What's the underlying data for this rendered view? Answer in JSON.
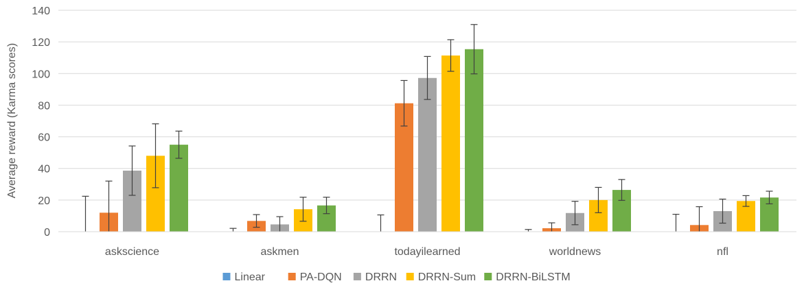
{
  "chart_data": {
    "type": "bar",
    "title": "",
    "xlabel": "",
    "ylabel": "Average reward (Karma scores)",
    "ylim": [
      0,
      140
    ],
    "ytick_step": 20,
    "grid": true,
    "legend_position": "bottom",
    "categories": [
      "askscience",
      "askmen",
      "todayilearned",
      "worldnews",
      "nfl"
    ],
    "series": [
      {
        "name": "Linear",
        "color": "#5B9BD5",
        "values": [
          0,
          0,
          0,
          0,
          0
        ],
        "error": [
          22.4,
          2.1,
          10.6,
          1.4,
          11.0
        ]
      },
      {
        "name": "PA-DQN",
        "color": "#ED7D31",
        "values": [
          12.0,
          6.8,
          81.2,
          2.2,
          4.2
        ],
        "error": [
          20.0,
          4.0,
          14.4,
          3.4,
          11.6
        ]
      },
      {
        "name": "DRRN",
        "color": "#A5A5A5",
        "values": [
          38.6,
          4.6,
          97.2,
          11.8,
          13.0
        ],
        "error": [
          15.6,
          4.9,
          13.6,
          7.4,
          7.6
        ]
      },
      {
        "name": "DRRN-Sum",
        "color": "#FFC000",
        "values": [
          48.0,
          14.2,
          111.4,
          20.0,
          19.4
        ],
        "error": [
          20.2,
          7.6,
          10.0,
          8.0,
          3.4
        ]
      },
      {
        "name": "DRRN-BiLSTM",
        "color": "#70AD47",
        "values": [
          55.0,
          16.6,
          115.4,
          26.4,
          21.6
        ],
        "error": [
          8.6,
          5.2,
          15.6,
          6.6,
          4.0
        ]
      }
    ]
  }
}
